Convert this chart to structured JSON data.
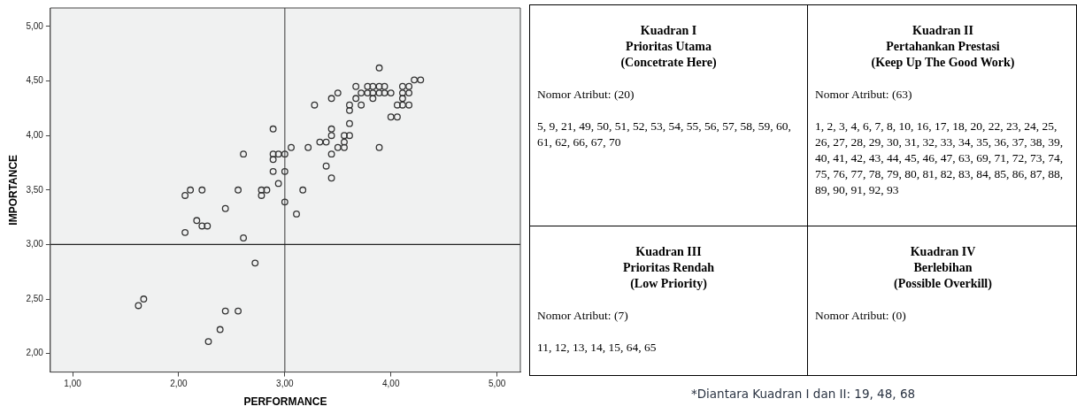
{
  "chart_data": [
    {
      "type": "scatter",
      "xlabel": "PERFORMANCE",
      "ylabel": "IMPORTANCE",
      "color": "#333333",
      "marker": "circle",
      "xlim": [
        0.79,
        5.22
      ],
      "ylim": [
        1.83,
        5.17
      ],
      "xticks": [
        {
          "value": 1,
          "label": "1,00"
        },
        {
          "value": 2,
          "label": "2,00"
        },
        {
          "value": 3,
          "label": "3,00"
        },
        {
          "value": 4,
          "label": "4,00"
        },
        {
          "value": 5,
          "label": "5,00"
        }
      ],
      "yticks": [
        {
          "value": 2,
          "label": "2,00"
        },
        {
          "value": 2.5,
          "label": "2,50"
        },
        {
          "value": 3,
          "label": "3,00"
        },
        {
          "value": 3.5,
          "label": "3,50"
        },
        {
          "value": 4,
          "label": "4,00"
        },
        {
          "value": 4.5,
          "label": "4,50"
        },
        {
          "value": 5,
          "label": "5,00"
        }
      ],
      "ref_lines": [
        {
          "axis": "x",
          "value": 3,
          "color": "#555555"
        },
        {
          "axis": "y",
          "value": 3,
          "color": "#222222"
        }
      ],
      "x": [
        2.89,
        2.61,
        2.89,
        2.94,
        3.0,
        2.89,
        2.89,
        3.0,
        2.94,
        3.0,
        2.06,
        2.11,
        2.22,
        2.56,
        2.78,
        2.83,
        2.78,
        2.44,
        2.06,
        2.17,
        2.22,
        2.27,
        2.61,
        2.72,
        1.62,
        1.67,
        2.44,
        2.56,
        2.39,
        2.28,
        3.11,
        3.06,
        3.17,
        3.22,
        3.28,
        3.33,
        3.39,
        3.39,
        3.44,
        3.44,
        3.44,
        3.44,
        3.44,
        3.5,
        3.5,
        3.56,
        3.56,
        3.56,
        3.61,
        3.61,
        3.61,
        3.61,
        3.67,
        3.67,
        3.72,
        3.72,
        3.78,
        3.83,
        3.89,
        3.94,
        3.78,
        3.83,
        3.89,
        3.94,
        4.0,
        3.83,
        3.89,
        3.89,
        4.0,
        4.06,
        4.06,
        4.11,
        4.17,
        4.11,
        4.17,
        4.11,
        4.17,
        4.11,
        4.22,
        4.28
      ],
      "values": [
        4.06,
        3.83,
        3.83,
        3.83,
        3.83,
        3.78,
        3.67,
        3.67,
        3.56,
        3.39,
        3.45,
        3.5,
        3.5,
        3.5,
        3.5,
        3.5,
        3.45,
        3.33,
        3.11,
        3.22,
        3.17,
        3.17,
        3.06,
        2.83,
        2.44,
        2.5,
        2.39,
        2.39,
        2.22,
        2.11,
        3.28,
        3.89,
        3.5,
        3.89,
        4.28,
        3.94,
        3.94,
        3.72,
        3.61,
        3.83,
        4.06,
        4.0,
        4.34,
        4.39,
        3.89,
        3.89,
        3.94,
        4.0,
        4.0,
        4.11,
        4.23,
        4.28,
        4.45,
        4.34,
        4.39,
        4.28,
        4.45,
        4.45,
        4.45,
        4.45,
        4.39,
        4.39,
        4.39,
        4.39,
        4.39,
        4.34,
        4.62,
        3.89,
        4.17,
        4.17,
        4.28,
        4.28,
        4.28,
        4.45,
        4.45,
        4.39,
        4.39,
        4.34,
        4.51,
        4.51
      ]
    },
    {
      "type": "other",
      "annotations": [
        "Kuadran I\nPrioritas Utama\n(Concetrate Here)\n\nNomor Atribut: (20)\n\n5, 9, 21, 49, 50, 51, 52, 53, 54, 55, 56, 57, 58, 59, 60, 61, 62, 66, 67, 70",
        "Kuadran II\nPertahankan Prestasi\n(Keep Up The Good Work)\n\nNomor Atribut: (63)\n\n1, 2, 3, 4, 6, 7, 8, 10, 16, 17, 18, 20, 22, 23, 24, 25, 26, 27, 28, 29, 30, 31, 32, 33, 34, 35, 36, 37, 38, 39, 40, 41, 42, 43, 44, 45, 46, 47, 63, 69, 71, 72, 73, 74, 75, 76, 77, 78, 79, 80, 81, 82, 83, 84, 85, 86, 87, 88, 89, 90, 91, 92, 93",
        "Kuadran III\nPrioritas Rendah\n(Low Priority)\n\nNomor Atribut: (7)\n\n11, 12, 13, 14, 15, 64, 65",
        "Kuadran IV\nBerlebihan\n(Possible Overkill)\n\nNomor Atribut: (0)",
        "*Diantara Kuadran I dan II: 19, 48, 68"
      ]
    }
  ]
}
